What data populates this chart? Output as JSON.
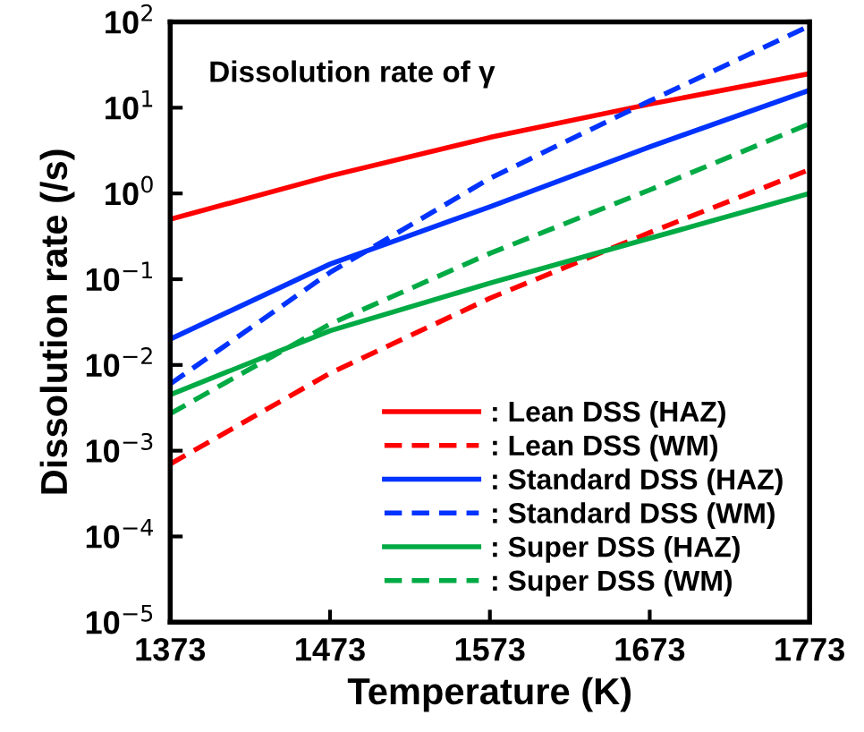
{
  "chart_data": {
    "type": "line",
    "xlabel": "Temperature (K)",
    "ylabel": "Dissolution rate (/s)",
    "annotations": [
      "Dissolution rate of γ"
    ],
    "x": [
      1373,
      1473,
      1573,
      1673,
      1773
    ],
    "xlim": [
      1373,
      1773
    ],
    "xticks": [
      1373,
      1473,
      1573,
      1673,
      1773
    ],
    "ylim": [
      1e-05,
      100
    ],
    "log": "y",
    "yticks": [
      {
        "value": 1e-05,
        "label": "10$^{−5}$"
      },
      {
        "value": 0.0001,
        "label": "10$^{−4}$"
      },
      {
        "value": 0.001,
        "label": "10$^{−3}$"
      },
      {
        "value": 0.01,
        "label": "10$^{−2}$"
      },
      {
        "value": 0.1,
        "label": "10$^{−1}$"
      },
      {
        "value": 1,
        "label": "10$^{0}$"
      },
      {
        "value": 10,
        "label": "10$^{1}$"
      },
      {
        "value": 100,
        "label": "10$^{2}$"
      }
    ],
    "grid": false,
    "legend": "bottom right",
    "marker": "none",
    "series": [
      {
        "name": ": Lean DSS (HAZ)",
        "color": "#ff0000",
        "line_style": "solid",
        "values": [
          0.5,
          1.6,
          4.5,
          11,
          25
        ]
      },
      {
        "name": ": Lean DSS (WM)",
        "color": "#ff0000",
        "line_style": "dashed",
        "values": [
          0.0007,
          0.008,
          0.06,
          0.35,
          1.9
        ]
      },
      {
        "name": ": Standard DSS (HAZ)",
        "color": "#0033ff",
        "line_style": "solid",
        "values": [
          0.02,
          0.15,
          0.7,
          3.5,
          16
        ]
      },
      {
        "name": ": Standard DSS (WM)",
        "color": "#0033ff",
        "line_style": "dashed",
        "values": [
          0.006,
          0.12,
          1.5,
          12,
          90
        ]
      },
      {
        "name": ": Super DSS (HAZ)",
        "color": "#00aa44",
        "line_style": "solid",
        "values": [
          0.0045,
          0.025,
          0.09,
          0.3,
          1.0
        ]
      },
      {
        "name": ": Super DSS (WM)",
        "color": "#00aa44",
        "line_style": "dashed",
        "values": [
          0.0027,
          0.03,
          0.2,
          1.1,
          6.5
        ]
      }
    ]
  }
}
